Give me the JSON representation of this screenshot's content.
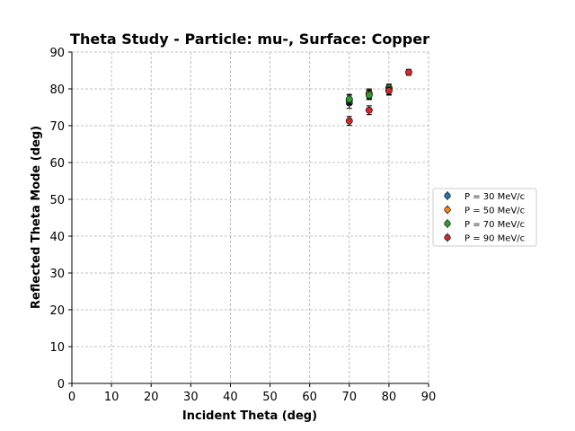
{
  "chart_data": {
    "type": "scatter",
    "title": "Theta Study - Particle: mu-, Surface: Copper",
    "xlabel": "Incident Theta (deg)",
    "ylabel": "Reflected Theta Mode (deg)",
    "xlim": [
      0,
      90
    ],
    "ylim": [
      0,
      90
    ],
    "xticks": [
      0,
      10,
      20,
      30,
      40,
      50,
      60,
      70,
      80,
      90
    ],
    "yticks": [
      0,
      10,
      20,
      30,
      40,
      50,
      60,
      70,
      80,
      90
    ],
    "grid": true,
    "legend_position": "center-right outside",
    "error_bars": true,
    "series": [
      {
        "name": "P = 30 MeV/c",
        "color": "#1f77b4",
        "points": [
          {
            "x": 70,
            "y": 76.2,
            "err": 1.5
          },
          {
            "x": 75,
            "y": 78.5,
            "err": 1.2
          },
          {
            "x": 80,
            "y": 79.5,
            "err": 1.2
          }
        ]
      },
      {
        "name": "P = 50 MeV/c",
        "color": "#ff7f0e",
        "points": [
          {
            "x": 70,
            "y": 77.0,
            "err": 1.3
          },
          {
            "x": 75,
            "y": 78.8,
            "err": 1.2
          },
          {
            "x": 80,
            "y": 80.2,
            "err": 1.0
          }
        ]
      },
      {
        "name": "P = 70 MeV/c",
        "color": "#2ca02c",
        "points": [
          {
            "x": 70,
            "y": 77.2,
            "err": 1.3
          },
          {
            "x": 75,
            "y": 78.3,
            "err": 1.2
          },
          {
            "x": 80,
            "y": 80.3,
            "err": 1.0
          }
        ]
      },
      {
        "name": "P = 90 MeV/c",
        "color": "#d62728",
        "points": [
          {
            "x": 70,
            "y": 71.3,
            "err": 1.2
          },
          {
            "x": 75,
            "y": 74.2,
            "err": 1.2
          },
          {
            "x": 80,
            "y": 79.5,
            "err": 1.0
          },
          {
            "x": 85,
            "y": 84.5,
            "err": 0.8
          }
        ]
      }
    ]
  }
}
